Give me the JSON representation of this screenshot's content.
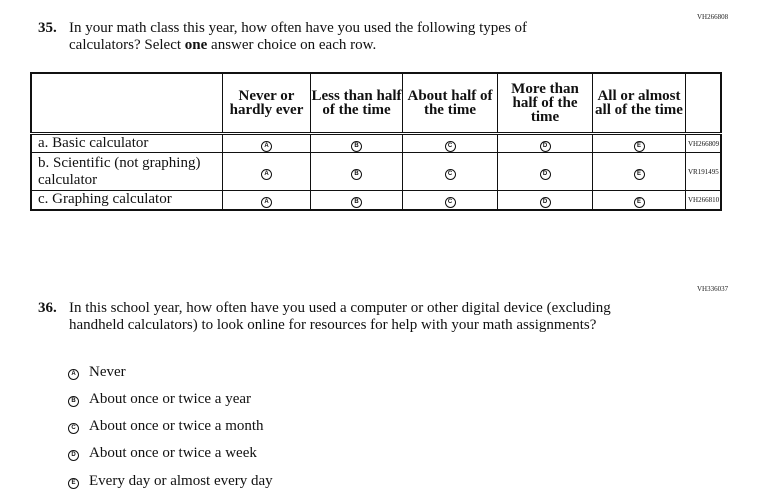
{
  "q35": {
    "id": "VH266808",
    "number": "35.",
    "text_before": "In your math class this year, how often have you used the following types of calculators? Select ",
    "text_bold": "one",
    "text_after": " answer choice on each row.",
    "columns": [
      "Never or hardly ever",
      "Less than half of the time",
      "About half of the time",
      "More than half of the time",
      "All or almost all of the time"
    ],
    "bubbles": [
      "A",
      "B",
      "C",
      "D",
      "E"
    ],
    "rows": [
      {
        "label": "a. Basic calculator",
        "id": "VH266809"
      },
      {
        "label": "b. Scientific (not graphing) calculator",
        "id": "VR191495"
      },
      {
        "label": "c. Graphing calculator",
        "id": "VH266810"
      }
    ]
  },
  "q36": {
    "id": "VH336037",
    "number": "36.",
    "text": "In this school year, how often have you used a computer or other digital device (excluding handheld calculators) to look online for resources for help with your math assignments?",
    "options": [
      {
        "letter": "A",
        "label": "Never"
      },
      {
        "letter": "B",
        "label": "About once or twice a year"
      },
      {
        "letter": "C",
        "label": "About once or twice a month"
      },
      {
        "letter": "D",
        "label": "About once or twice a week"
      },
      {
        "letter": "E",
        "label": "Every day or almost every day"
      }
    ]
  }
}
